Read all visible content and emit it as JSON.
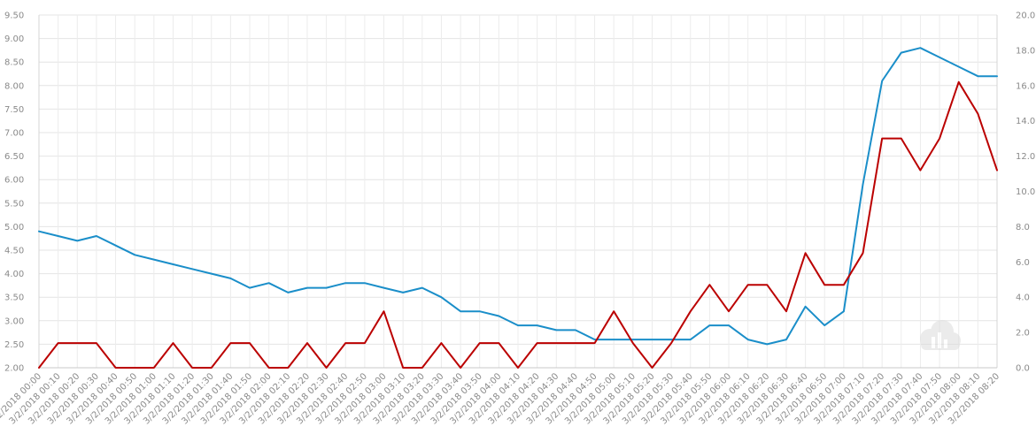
{
  "chart_data": {
    "type": "line",
    "title": "",
    "xlabel": "",
    "ylabel": "",
    "ylim_left": [
      2.0,
      9.5
    ],
    "ylim_right": [
      0.0,
      20.0
    ],
    "left_ticks": [
      "2.00",
      "2.50",
      "3.00",
      "3.50",
      "4.00",
      "4.50",
      "5.00",
      "5.50",
      "6.00",
      "6.50",
      "7.00",
      "7.50",
      "8.00",
      "8.50",
      "9.00",
      "9.50"
    ],
    "right_ticks": [
      "0.0",
      "2.0",
      "4.0",
      "6.0",
      "8.0",
      "10.0",
      "12.0",
      "14.0",
      "16.0",
      "18.0",
      "20.0"
    ],
    "grid": true,
    "legend": "none",
    "categories": [
      "3/2/2018 00:00",
      "3/2/2018 00:10",
      "3/2/2018 00:20",
      "3/2/2018 00:30",
      "3/2/2018 00:40",
      "3/2/2018 00:50",
      "3/2/2018 01:00",
      "3/2/2018 01:10",
      "3/2/2018 01:20",
      "3/2/2018 01:30",
      "3/2/2018 01:40",
      "3/2/2018 01:50",
      "3/2/2018 02:00",
      "3/2/2018 02:10",
      "3/2/2018 02:20",
      "3/2/2018 02:30",
      "3/2/2018 02:40",
      "3/2/2018 02:50",
      "3/2/2018 03:00",
      "3/2/2018 03:10",
      "3/2/2018 03:20",
      "3/2/2018 03:30",
      "3/2/2018 03:40",
      "3/2/2018 03:50",
      "3/2/2018 04:00",
      "3/2/2018 04:10",
      "3/2/2018 04:20",
      "3/2/2018 04:30",
      "3/2/2018 04:40",
      "3/2/2018 04:50",
      "3/2/2018 05:00",
      "3/2/2018 05:10",
      "3/2/2018 05:20",
      "3/2/2018 05:30",
      "3/2/2018 05:40",
      "3/2/2018 05:50",
      "3/2/2018 06:00",
      "3/2/2018 06:10",
      "3/2/2018 06:20",
      "3/2/2018 06:30",
      "3/2/2018 06:40",
      "3/2/2018 06:50",
      "3/2/2018 07:00",
      "3/2/2018 07:10",
      "3/2/2018 07:20",
      "3/2/2018 07:30",
      "3/2/2018 07:40",
      "3/2/2018 07:50",
      "3/2/2018 08:00",
      "3/2/2018 08:10",
      "3/2/2018 08:20"
    ],
    "series": [
      {
        "axis": "left",
        "color": "#1a8ec9",
        "values": [
          4.9,
          4.8,
          4.7,
          4.8,
          4.6,
          4.4,
          4.3,
          4.2,
          4.1,
          4.0,
          3.9,
          3.7,
          3.8,
          3.6,
          3.7,
          3.7,
          3.8,
          3.8,
          3.7,
          3.6,
          3.7,
          3.5,
          3.2,
          3.2,
          3.1,
          2.9,
          2.9,
          2.8,
          2.8,
          2.6,
          2.6,
          2.6,
          2.6,
          2.6,
          2.6,
          2.9,
          2.9,
          2.6,
          2.5,
          2.6,
          3.3,
          2.9,
          3.2,
          5.9,
          8.1,
          8.7,
          8.8,
          8.6,
          8.4,
          8.2,
          8.2
        ]
      },
      {
        "axis": "right",
        "color": "#bb0000",
        "values": [
          0.0,
          1.4,
          1.4,
          1.4,
          0.0,
          0.0,
          0.0,
          1.4,
          0.0,
          0.0,
          1.4,
          1.4,
          0.0,
          0.0,
          1.4,
          0.0,
          1.4,
          1.4,
          3.2,
          0.0,
          0.0,
          1.4,
          0.0,
          1.4,
          1.4,
          0.0,
          1.4,
          1.4,
          1.4,
          1.4,
          3.2,
          1.4,
          0.0,
          1.4,
          3.2,
          4.7,
          3.2,
          4.7,
          4.7,
          3.2,
          6.5,
          4.7,
          4.7,
          6.5,
          13.0,
          13.0,
          11.2,
          13.0,
          16.2,
          14.4,
          11.2
        ]
      }
    ]
  },
  "watermark": {
    "icon": "cloud-chart-icon"
  }
}
